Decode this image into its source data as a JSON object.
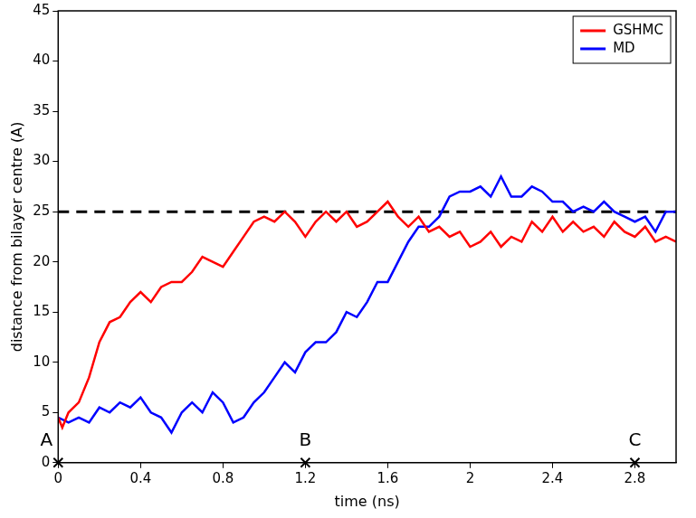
{
  "chart_data": {
    "type": "line",
    "x_label": "time (ns)",
    "y_label": "distance from bilayer centre (A)",
    "xlim": [
      0,
      3
    ],
    "xticks": [
      0,
      0.4,
      0.8,
      1.2,
      1.6,
      2,
      2.4,
      2.8
    ],
    "ylim": [
      0,
      45
    ],
    "yticks": [
      0,
      5,
      10,
      15,
      20,
      25,
      30,
      35,
      40,
      45
    ],
    "grid": false,
    "legend": "upper right",
    "reference_line": {
      "y": 25,
      "color": "#000000",
      "line_style": "dashed"
    },
    "markers": [
      {
        "x": 0,
        "label": "A"
      },
      {
        "x": 1.2,
        "label": "B"
      },
      {
        "x": 2.8,
        "label": "C"
      }
    ],
    "series": [
      {
        "name": "GSHMC",
        "color": "#ff0000",
        "x": [
          0,
          0.02,
          0.05,
          0.1,
          0.15,
          0.2,
          0.25,
          0.3,
          0.35,
          0.4,
          0.45,
          0.5,
          0.55,
          0.6,
          0.65,
          0.7,
          0.75,
          0.8,
          0.85,
          0.9,
          0.95,
          1.0,
          1.05,
          1.1,
          1.15,
          1.2,
          1.25,
          1.3,
          1.35,
          1.4,
          1.45,
          1.5,
          1.55,
          1.6,
          1.65,
          1.7,
          1.75,
          1.8,
          1.85,
          1.9,
          1.95,
          2.0,
          2.05,
          2.1,
          2.15,
          2.2,
          2.25,
          2.3,
          2.35,
          2.4,
          2.45,
          2.5,
          2.55,
          2.6,
          2.65,
          2.7,
          2.75,
          2.8,
          2.85,
          2.9,
          2.95,
          3.0
        ],
        "values": [
          4.5,
          3.5,
          5,
          6,
          8.5,
          12,
          14,
          14.5,
          16,
          17,
          16,
          17.5,
          18,
          18,
          19,
          20.5,
          20,
          19.5,
          21,
          22.5,
          24,
          24.5,
          24,
          25,
          24,
          22.5,
          24,
          25,
          24,
          25,
          23.5,
          24,
          25,
          26,
          24.5,
          23.5,
          24.5,
          23,
          23.5,
          22.5,
          23,
          21.5,
          22,
          23,
          21.5,
          22.5,
          22,
          24,
          23,
          24.5,
          23,
          24,
          23,
          23.5,
          22.5,
          24,
          23,
          22.5,
          23.5,
          22,
          22.5,
          22
        ]
      },
      {
        "name": "MD",
        "color": "#0000ff",
        "x": [
          0,
          0.05,
          0.1,
          0.15,
          0.2,
          0.25,
          0.3,
          0.35,
          0.4,
          0.45,
          0.5,
          0.55,
          0.6,
          0.65,
          0.7,
          0.75,
          0.8,
          0.85,
          0.9,
          0.95,
          1.0,
          1.05,
          1.1,
          1.15,
          1.2,
          1.25,
          1.3,
          1.35,
          1.4,
          1.45,
          1.5,
          1.55,
          1.6,
          1.65,
          1.7,
          1.75,
          1.8,
          1.85,
          1.9,
          1.95,
          2.0,
          2.05,
          2.1,
          2.15,
          2.2,
          2.25,
          2.3,
          2.35,
          2.4,
          2.45,
          2.5,
          2.55,
          2.6,
          2.65,
          2.7,
          2.75,
          2.8,
          2.85,
          2.9,
          2.95,
          3.0
        ],
        "values": [
          4.5,
          4,
          4.5,
          4,
          5.5,
          5,
          6,
          5.5,
          6.5,
          5,
          4.5,
          3,
          5,
          6,
          5,
          7,
          6,
          4,
          4.5,
          6,
          7,
          8.5,
          10,
          9,
          11,
          12,
          12,
          13,
          15,
          14.5,
          16,
          18,
          18,
          20,
          22,
          23.5,
          23.5,
          24.5,
          26.5,
          27,
          27,
          27.5,
          26.5,
          28.5,
          26.5,
          26.5,
          27.5,
          27,
          26,
          26,
          25,
          25.5,
          25,
          26,
          25,
          24.5,
          24,
          24.5,
          23,
          25,
          25
        ]
      }
    ]
  }
}
